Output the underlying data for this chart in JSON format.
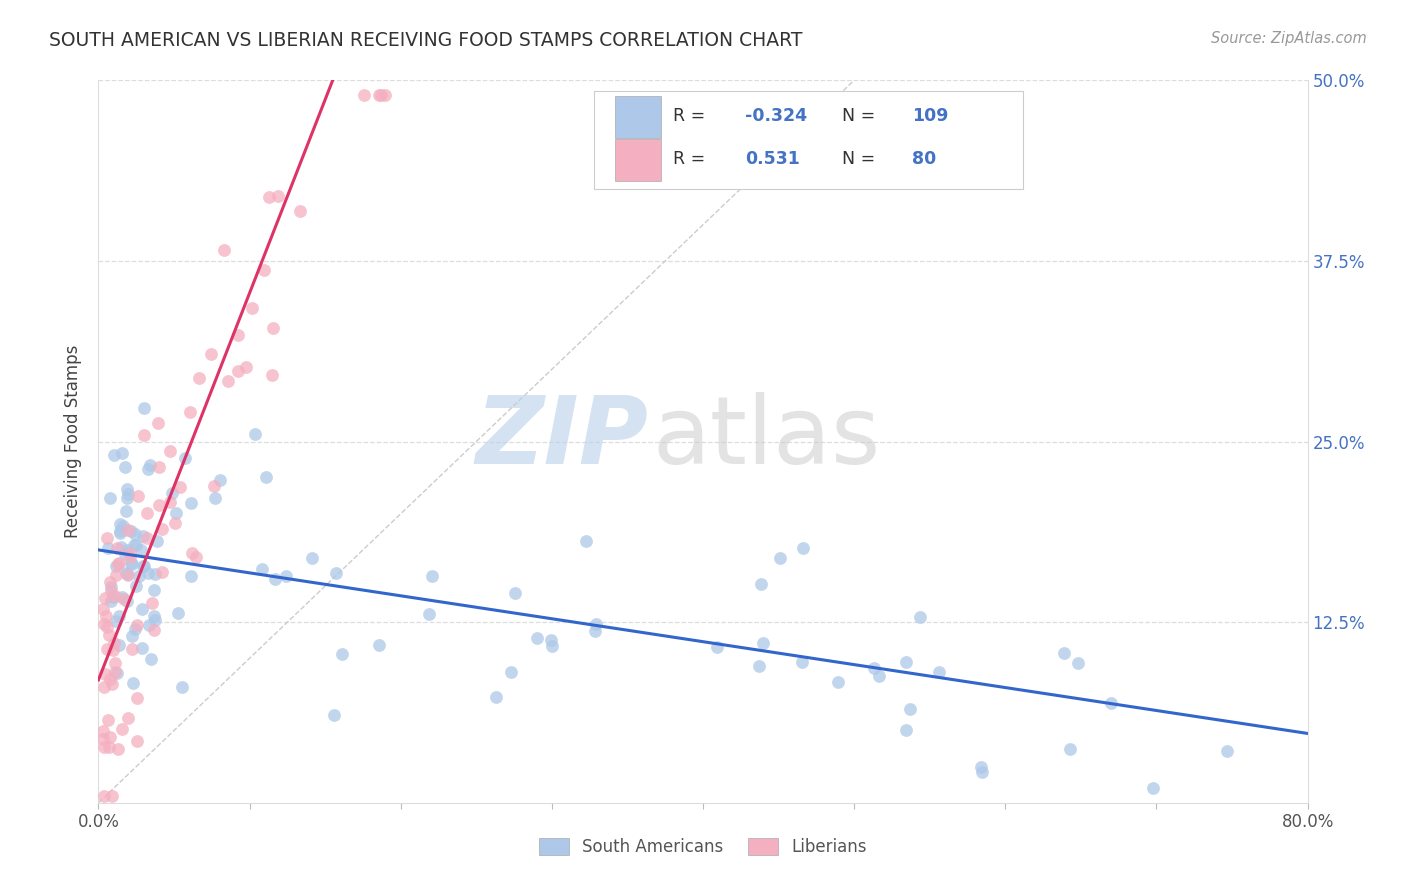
{
  "title": "SOUTH AMERICAN VS LIBERIAN RECEIVING FOOD STAMPS CORRELATION CHART",
  "source": "Source: ZipAtlas.com",
  "ylabel": "Receiving Food Stamps",
  "xlim": [
    0,
    0.8
  ],
  "ylim": [
    0,
    0.5
  ],
  "xtick_positions": [
    0.0,
    0.1,
    0.2,
    0.3,
    0.4,
    0.5,
    0.6,
    0.7,
    0.8
  ],
  "xtick_labels": [
    "0.0%",
    "",
    "",
    "",
    "",
    "",
    "",
    "",
    "80.0%"
  ],
  "ytick_positions": [
    0.0,
    0.125,
    0.25,
    0.375,
    0.5
  ],
  "ytick_labels_right": [
    "",
    "12.5%",
    "25.0%",
    "37.5%",
    "50.0%"
  ],
  "blue_R": "-0.324",
  "blue_N": "109",
  "pink_R": "0.531",
  "pink_N": "80",
  "blue_color": "#adc8e8",
  "pink_color": "#f4afc0",
  "blue_line_color": "#3366cc",
  "pink_line_color": "#dd3366",
  "legend_label_blue": "South Americans",
  "legend_label_pink": "Liberians",
  "watermark_zip": "ZIP",
  "watermark_atlas": "atlas",
  "background_color": "#ffffff",
  "title_color": "#333333",
  "source_color": "#999999",
  "ylabel_color": "#444444",
  "right_tick_color": "#4472c4",
  "legend_text_color": "#333333",
  "legend_value_color": "#4472c4",
  "blue_line_x0": 0.0,
  "blue_line_y0": 0.175,
  "blue_line_x1": 0.8,
  "blue_line_y1": 0.048,
  "pink_line_x0": 0.0,
  "pink_line_y0": 0.085,
  "pink_line_x1": 0.155,
  "pink_line_y1": 0.5,
  "diag_line_x0": 0.0,
  "diag_line_y0": 0.0,
  "diag_line_x1": 0.5,
  "diag_line_y1": 0.5
}
